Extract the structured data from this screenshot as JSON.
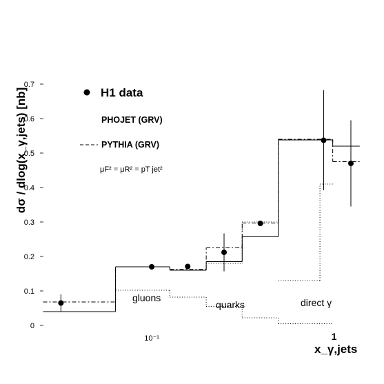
{
  "chart_data": {
    "type": "scatter",
    "ylabel": "dσ / dlog(x_γ,jets) [nb]",
    "xlabel": "x_γ,jets",
    "ylim": [
      0,
      0.7
    ],
    "yticks": [
      0,
      0.1,
      0.2,
      0.3,
      0.4,
      0.5,
      0.6,
      0.7
    ],
    "yticks_labels": [
      "0",
      "0.1",
      "0.2",
      "0.3",
      "0.4",
      "0.5",
      "0.6",
      "0.7"
    ],
    "x_scale": "log",
    "xlim": [
      0.025,
      1.45
    ],
    "xtick_labels": [
      {
        "x": 0.1,
        "text": "10⁻¹"
      },
      {
        "x": 1.0,
        "text": "1"
      }
    ],
    "legend": {
      "h1": "H1 data",
      "phojet": "PHOJET (GRV)",
      "pythia": "PYTHIA (GRV)",
      "scale": "μF² = μR² = pT jet²"
    },
    "region_labels": [
      "gluons",
      "quarks",
      "direct γ"
    ],
    "series": [
      {
        "name": "H1 data",
        "style": "points",
        "points": [
          {
            "x": 0.0315,
            "y": 0.065,
            "err_low": 0.025,
            "err_high": 0.025
          },
          {
            "x": 0.1,
            "y": 0.17,
            "err_low": 0,
            "err_high": 0
          },
          {
            "x": 0.158,
            "y": 0.171,
            "err_low": 0,
            "err_high": 0
          },
          {
            "x": 0.251,
            "y": 0.212,
            "err_low": 0.055,
            "err_high": 0.055
          },
          {
            "x": 0.398,
            "y": 0.296,
            "err_low": 0,
            "err_high": 0
          },
          {
            "x": 0.891,
            "y": 0.537,
            "err_low": 0.145,
            "err_high": 0.145
          },
          {
            "x": 1.26,
            "y": 0.47,
            "err_low": 0.125,
            "err_high": 0.125
          }
        ]
      },
      {
        "name": "PHOJET (GRV)",
        "style": "solid",
        "bins": [
          {
            "x0": 0.0251,
            "x1": 0.0631,
            "y": 0.04
          },
          {
            "x0": 0.0631,
            "x1": 0.126,
            "y": 0.17
          },
          {
            "x0": 0.126,
            "x1": 0.2,
            "y": 0.16
          },
          {
            "x0": 0.2,
            "x1": 0.316,
            "y": 0.185
          },
          {
            "x0": 0.316,
            "x1": 0.5,
            "y": 0.257
          },
          {
            "x0": 0.5,
            "x1": 1.0,
            "y": 0.538
          },
          {
            "x0": 1.0,
            "x1": 1.41,
            "y": 0.52
          }
        ]
      },
      {
        "name": "PYTHIA (GRV)",
        "style": "dashed",
        "bins": [
          {
            "x0": 0.0251,
            "x1": 0.0631,
            "y": 0.068
          },
          {
            "x0": 0.0631,
            "x1": 0.126,
            "y": 0.17
          },
          {
            "x0": 0.126,
            "x1": 0.2,
            "y": 0.163
          },
          {
            "x0": 0.2,
            "x1": 0.316,
            "y": 0.225
          },
          {
            "x0": 0.316,
            "x1": 0.5,
            "y": 0.297
          },
          {
            "x0": 0.5,
            "x1": 1.0,
            "y": 0.54
          },
          {
            "x0": 1.0,
            "x1": 1.41,
            "y": 0.475
          }
        ]
      },
      {
        "name": "gluons",
        "style": "dotted",
        "bins": [
          {
            "x0": 0.0631,
            "x1": 0.126,
            "y": 0.102
          },
          {
            "x0": 0.126,
            "x1": 0.2,
            "y": 0.082
          },
          {
            "x0": 0.2,
            "x1": 0.316,
            "y": 0.055
          },
          {
            "x0": 0.316,
            "x1": 0.5,
            "y": 0.022
          },
          {
            "x0": 0.5,
            "x1": 1.0,
            "y": 0.005
          }
        ]
      },
      {
        "name": "quarks",
        "style": "dotted",
        "bins": [
          {
            "x0": 0.2,
            "x1": 0.316,
            "y": 0.18
          },
          {
            "x0": 0.316,
            "x1": 0.5,
            "y": 0.3
          }
        ]
      },
      {
        "name": "direct γ",
        "style": "dotted",
        "bins": [
          {
            "x0": 0.5,
            "x1": 0.85,
            "y": 0.13
          },
          {
            "x0": 0.85,
            "x1": 1.0,
            "y": 0.41
          }
        ]
      }
    ]
  }
}
